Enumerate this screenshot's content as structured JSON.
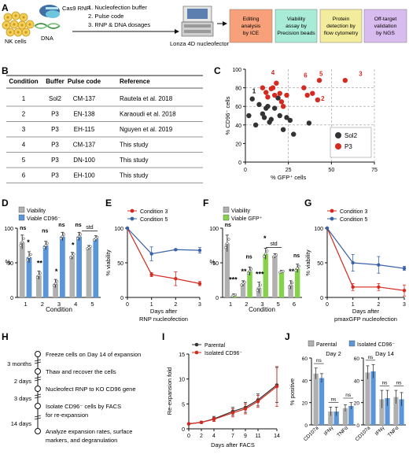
{
  "panelA": {
    "letter": "A",
    "nk_cells": "NK cells",
    "rnp": "Cas9 RNP",
    "dna": "DNA",
    "steps": [
      "1. Nucleofection buffer",
      "2. Pulse code",
      "3. RNP & DNA dosages"
    ],
    "device": "Lonza 4D nucleofector",
    "boxes": [
      {
        "text": [
          "Editing",
          "analysis",
          "by ICE"
        ],
        "color": "#f7a07a"
      },
      {
        "text": [
          "Viability",
          "assay by",
          "Precision beads"
        ],
        "color": "#a8ebd6"
      },
      {
        "text": [
          "Protein",
          "detection by",
          "flow cytometry"
        ],
        "color": "#f3ec9c"
      },
      {
        "text": [
          "Off-target",
          "validation",
          "by NGS"
        ],
        "color": "#d9bcef"
      }
    ]
  },
  "panelB": {
    "letter": "B",
    "headers": [
      "Condition",
      "Buffer",
      "Pulse code",
      "Reference"
    ],
    "rows": [
      {
        "c": "1",
        "b": "Sol2",
        "p": "CM-137",
        "r": "Rautela et al. 2018"
      },
      {
        "c": "2",
        "b": "P3",
        "p": "EN-138",
        "r": "Karaoudi et al. 2018"
      },
      {
        "c": "3",
        "b": "P3",
        "p": "EH-115",
        "r": "Nguyen et al. 2019"
      },
      {
        "c": "4",
        "b": "P3",
        "p": "CM-137",
        "r": "This study"
      },
      {
        "c": "5",
        "b": "P3",
        "p": "DN-100",
        "r": "This study"
      },
      {
        "c": "6",
        "b": "P3",
        "p": "EH-100",
        "r": "This study"
      }
    ]
  },
  "panelC": {
    "letter": "C",
    "ylabel": "% CD96⁻ cells",
    "xlabel": "% GFP⁺ cells",
    "legend": [
      "Sol2",
      "P3"
    ],
    "colors": {
      "sol2": "#333333",
      "p3": "#d42a20"
    }
  },
  "panelD": {
    "letter": "D",
    "legend": [
      "Viability",
      "Viable CD96⁻"
    ],
    "ylabel": "%",
    "xlabel": "Condition",
    "std": "std",
    "ns": "ns"
  },
  "panelE": {
    "letter": "E",
    "legend": [
      "Condition 3",
      "Condition 5"
    ],
    "ylabel": "% viability",
    "xlabel": [
      "Days after",
      "RNP nucleofection"
    ]
  },
  "panelF": {
    "letter": "F",
    "legend": [
      "Viability",
      "Viable GFP⁺"
    ],
    "ylabel": "%",
    "xlabel": "Condition",
    "std": "std"
  },
  "panelG": {
    "letter": "G",
    "legend": [
      "Condition 3",
      "Condition 5"
    ],
    "ylabel": "% viability",
    "xlabel": [
      "Days after",
      "pmaxGFP nucleofection"
    ]
  },
  "panelH": {
    "letter": "H",
    "steps": [
      {
        "left": "",
        "text": "Freeze cells on Day 14 of expansion"
      },
      {
        "left": "3 months",
        "text": "Thaw and recover the cells"
      },
      {
        "left": "2 days",
        "text": "Nucleofect RNP to KO CD96 gene"
      },
      {
        "left": "3 days",
        "text": "Isolate CD96⁻ cells by FACS"
      },
      {
        "left": "",
        "text": "for re-expansion"
      },
      {
        "left": "14 days",
        "text": "Analyze expansion rates, surface"
      },
      {
        "left": "",
        "text": "markers, and degranulation"
      }
    ]
  },
  "panelI": {
    "letter": "I",
    "legend": [
      "Parental",
      "Isolated CD96⁻"
    ],
    "ylabel": "Re-expansion fold",
    "xlabel": "Days after FACS"
  },
  "panelJ": {
    "letter": "J",
    "legend": [
      "Parental",
      "Isolated CD96⁻"
    ],
    "ylabel": "% positive",
    "subtitles": [
      "Day 2",
      "Day 14"
    ],
    "ns": "ns"
  },
  "chart_data": [
    {
      "type": "scatter",
      "id": "C",
      "xlabel": "% GFP⁺ cells",
      "ylabel": "% CD96⁻ cells",
      "xlim": [
        0,
        75
      ],
      "ylim": [
        0,
        100
      ],
      "xticks": [
        0,
        25,
        50,
        75
      ],
      "yticks": [
        0,
        20,
        40,
        60,
        80,
        100
      ],
      "series": [
        {
          "name": "Sol2",
          "x": [
            2,
            4,
            6,
            8,
            10,
            12,
            14,
            15,
            17,
            19,
            20,
            22,
            24,
            26,
            28,
            11,
            13,
            37
          ],
          "y": [
            50,
            68,
            40,
            62,
            52,
            58,
            43,
            46,
            58,
            69,
            50,
            35,
            48,
            45,
            30,
            48,
            60,
            42
          ]
        },
        {
          "name": "P3",
          "x": [
            10,
            12,
            13,
            15,
            16,
            17,
            18,
            20,
            21,
            22,
            24,
            34,
            36,
            39,
            42,
            43,
            58
          ],
          "y": [
            80,
            75,
            70,
            79,
            80,
            72,
            85,
            74,
            65,
            60,
            72,
            80,
            72,
            74,
            67,
            88,
            88
          ]
        }
      ],
      "labels": [
        {
          "text": "1",
          "x": 5,
          "y": 74
        },
        {
          "text": "4",
          "x": 16,
          "y": 94
        },
        {
          "text": "6",
          "x": 35,
          "y": 91
        },
        {
          "text": "5",
          "x": 44,
          "y": 93
        },
        {
          "text": "3",
          "x": 67,
          "y": 93
        },
        {
          "text": "2",
          "x": 45,
          "y": 66
        }
      ]
    },
    {
      "type": "bar",
      "id": "D",
      "categories": [
        "1",
        "2",
        "3",
        "4",
        "5"
      ],
      "ylim": [
        0,
        100
      ],
      "yticks": [
        0,
        50,
        100
      ],
      "series": [
        {
          "name": "Viability",
          "values": [
            80,
            32,
            20,
            60,
            72
          ],
          "err": [
            10,
            6,
            6,
            5,
            3
          ]
        },
        {
          "name": "Viable CD96⁻",
          "values": [
            58,
            75,
            88,
            88,
            85
          ],
          "err": [
            8,
            6,
            6,
            6,
            4
          ]
        }
      ],
      "annotations": [
        "ns",
        "*",
        "**",
        "ns",
        "*",
        "ns",
        "ns",
        "ns",
        "std"
      ]
    },
    {
      "type": "line",
      "id": "E",
      "x": [
        0,
        1,
        2,
        3
      ],
      "ylim": [
        0,
        100
      ],
      "yticks": [
        0,
        50,
        100
      ],
      "xlabel": "Days after RNP nucleofection",
      "ylabel": "% viability",
      "series": [
        {
          "name": "Condition 3",
          "values": [
            100,
            33,
            27,
            20
          ],
          "err": [
            0,
            3,
            10,
            3
          ]
        },
        {
          "name": "Condition 5",
          "values": [
            100,
            63,
            69,
            68
          ],
          "err": [
            0,
            10,
            1,
            4
          ]
        }
      ]
    },
    {
      "type": "bar",
      "id": "F",
      "categories": [
        "1",
        "2",
        "3",
        "5",
        "6"
      ],
      "ylim": [
        0,
        100
      ],
      "yticks": [
        0,
        50,
        100
      ],
      "series": [
        {
          "name": "Viability",
          "values": [
            78,
            20,
            14,
            60,
            18
          ],
          "err": [
            12,
            4,
            8,
            3,
            6
          ]
        },
        {
          "name": "Viable GFP⁺",
          "values": [
            3,
            38,
            63,
            37,
            42
          ],
          "err": [
            2,
            6,
            8,
            2,
            6
          ]
        }
      ]
    },
    {
      "type": "line",
      "id": "G",
      "x": [
        0,
        1,
        2,
        3
      ],
      "ylim": [
        0,
        100
      ],
      "yticks": [
        0,
        50,
        100
      ],
      "xlabel": "Days after pmaxGFP nucleofection",
      "ylabel": "% viability",
      "series": [
        {
          "name": "Condition 3",
          "values": [
            100,
            15,
            15,
            10
          ],
          "err": [
            0,
            5,
            5,
            8
          ]
        },
        {
          "name": "Condition 5",
          "values": [
            100,
            50,
            47,
            42
          ],
          "err": [
            0,
            12,
            12,
            3
          ]
        }
      ]
    },
    {
      "type": "line",
      "id": "I",
      "x": [
        0,
        2,
        4,
        7,
        9,
        11,
        14
      ],
      "ylim": [
        0,
        15
      ],
      "yticks": [
        0,
        5,
        10,
        15
      ],
      "xticks": [
        0,
        2,
        4,
        7,
        9,
        11,
        14
      ],
      "xlabel": "Days after FACS",
      "ylabel": "Re-expansion fold",
      "series": [
        {
          "name": "Parental",
          "values": [
            1,
            1.3,
            2.0,
            3.5,
            4.3,
            5.8,
            8.8
          ],
          "err": [
            0,
            0.2,
            0.5,
            0.8,
            1.0,
            1.2,
            3.5
          ]
        },
        {
          "name": "Isolated CD96⁻",
          "values": [
            1,
            1.3,
            1.9,
            3.2,
            4.0,
            5.5,
            8.5
          ],
          "err": [
            0,
            0.2,
            0.4,
            0.8,
            1.0,
            1.2,
            4.0
          ]
        }
      ]
    },
    {
      "type": "bar",
      "id": "J",
      "groups": [
        "Day 2",
        "Day 14"
      ],
      "categories": [
        "CD107a",
        "IFNγ",
        "TNFα"
      ],
      "ylim": [
        0,
        60
      ],
      "yticks": [
        0,
        20,
        40,
        60
      ],
      "series": [
        {
          "name": "Parental",
          "day2": [
            46,
            12,
            15
          ],
          "day14": [
            47,
            23,
            25
          ],
          "err2": [
            5,
            4,
            3
          ],
          "err14": [
            6,
            8,
            6
          ]
        },
        {
          "name": "Isolated CD96⁻",
          "day2": [
            42,
            12,
            17
          ],
          "day14": [
            48,
            24,
            23
          ],
          "err2": [
            4,
            4,
            3
          ],
          "err14": [
            6,
            7,
            6
          ]
        }
      ]
    }
  ]
}
